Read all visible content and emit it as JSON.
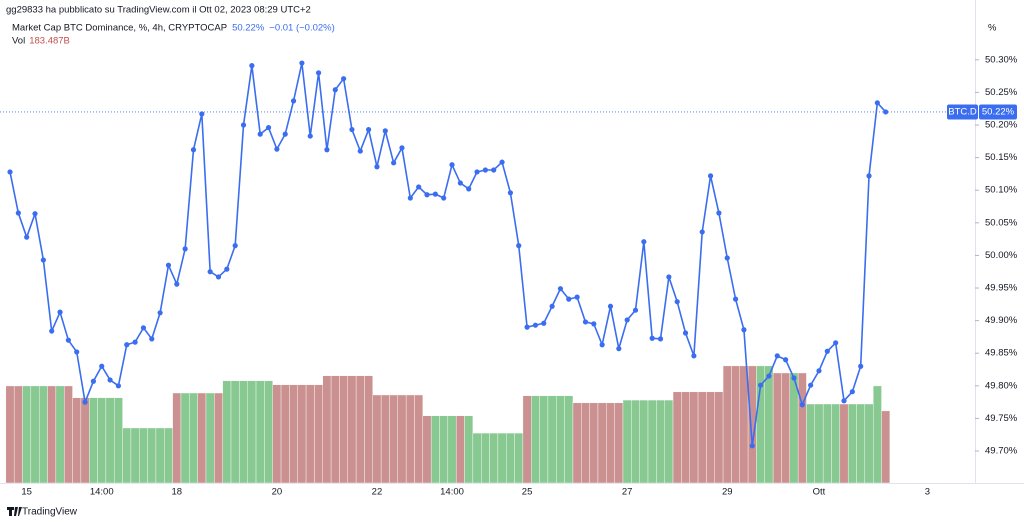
{
  "header": {
    "published": "gg29833 ha pubblicato su TradingView.com il Ott 02, 2023 08:29 UTC+2",
    "footer_brand": "TradingView"
  },
  "chart_data": {
    "type": "line",
    "title": "Market Cap BTC Dominance, %, 4h, CRYPTOCAP",
    "price_label": "50.22%",
    "change_label": "−0.01 (−0.02%)",
    "price_tag": "BTC.D",
    "axis_unit": "%",
    "categories": [
      null,
      null,
      "15",
      null,
      null,
      null,
      null,
      null,
      null,
      null,
      null,
      "14:00",
      null,
      null,
      null,
      null,
      null,
      null,
      null,
      null,
      "18",
      null,
      null,
      null,
      null,
      null,
      null,
      null,
      null,
      null,
      null,
      null,
      "20",
      null,
      null,
      null,
      null,
      null,
      null,
      null,
      null,
      null,
      null,
      null,
      "22",
      null,
      null,
      null,
      null,
      null,
      null,
      null,
      null,
      "14:00",
      null,
      null,
      null,
      null,
      null,
      null,
      null,
      null,
      "25",
      null,
      null,
      null,
      null,
      null,
      null,
      null,
      null,
      null,
      null,
      null,
      "27",
      null,
      null,
      null,
      null,
      null,
      null,
      null,
      null,
      null,
      null,
      null,
      "29",
      null,
      null,
      null,
      null,
      null,
      null,
      null,
      null,
      null,
      null,
      "Ott",
      null,
      null,
      null,
      null,
      null,
      null,
      null,
      null,
      null,
      null,
      null,
      null,
      "3"
    ],
    "series": [
      {
        "name": "BTC.D",
        "color": "#3a6df0",
        "values": [
          50.128,
          50.065,
          50.028,
          50.064,
          49.993,
          49.884,
          49.913,
          49.87,
          49.852,
          49.775,
          49.807,
          49.83,
          49.809,
          49.8,
          49.863,
          49.867,
          49.889,
          49.872,
          49.912,
          49.985,
          49.956,
          50.01,
          50.162,
          50.217,
          49.975,
          49.967,
          49.979,
          50.015,
          50.2,
          50.291,
          50.186,
          50.196,
          50.163,
          50.186,
          50.237,
          50.295,
          50.183,
          50.28,
          50.162,
          50.254,
          50.271,
          50.193,
          50.16,
          50.193,
          50.136,
          50.191,
          50.142,
          50.165,
          50.088,
          50.105,
          50.093,
          50.094,
          50.088,
          50.139,
          50.111,
          50.102,
          50.128,
          50.131,
          50.131,
          50.143,
          50.096,
          50.015,
          49.89,
          49.893,
          49.896,
          49.922,
          49.949,
          49.933,
          49.936,
          49.898,
          49.895,
          49.863,
          49.922,
          49.857,
          49.901,
          49.916,
          50.021,
          49.873,
          49.872,
          49.967,
          49.929,
          49.881,
          49.846,
          50.036,
          50.122,
          50.065,
          49.996,
          49.933,
          49.886,
          49.708,
          49.801,
          49.815,
          49.846,
          49.84,
          49.812,
          49.771,
          49.801,
          49.823,
          49.853,
          49.866,
          49.777,
          49.791,
          49.83,
          50.122,
          50.234,
          50.22,
          null,
          null,
          null,
          null,
          null
        ]
      }
    ],
    "volume": {
      "name": "Vol",
      "value_label": "183.487B",
      "values": [
        247,
        247,
        247,
        247,
        247,
        247,
        247,
        247,
        217,
        217,
        217,
        217,
        217,
        217,
        140,
        140,
        140,
        140,
        140,
        140,
        229,
        229,
        229,
        229,
        229,
        229,
        260,
        260,
        260,
        260,
        260,
        260,
        250,
        250,
        250,
        250,
        250,
        250,
        273,
        273,
        273,
        273,
        273,
        273,
        224,
        224,
        224,
        224,
        224,
        224,
        171,
        171,
        171,
        171,
        171,
        171,
        127,
        127,
        127,
        127,
        127,
        127,
        222,
        222,
        222,
        222,
        222,
        222,
        204,
        204,
        204,
        204,
        204,
        204,
        211,
        211,
        211,
        211,
        211,
        211,
        232,
        232,
        232,
        232,
        232,
        232,
        298,
        298,
        298,
        298,
        298,
        298,
        280,
        280,
        280,
        280,
        201,
        201,
        201,
        201,
        201,
        201,
        201,
        201,
        247,
        183.487,
        null,
        null,
        null,
        null,
        null
      ],
      "colors": [
        "#cb9191",
        "#cb9191",
        "#88c891",
        "#88c891",
        "#88c891",
        "#cb9191",
        "#88c891",
        "#cb9191",
        "#cb9191",
        "#cb9191",
        "#88c891",
        "#88c891",
        "#88c891",
        "#88c891",
        "#88c891",
        "#88c891",
        "#88c891",
        "#88c891",
        "#88c891",
        "#88c891",
        "#cb9191",
        "#88c891",
        "#88c891",
        "#cb9191",
        "#88c891",
        "#cb9191",
        "#88c891",
        "#88c891",
        "#88c891",
        "#88c891",
        "#88c891",
        "#88c891",
        "#cb9191",
        "#cb9191",
        "#cb9191",
        "#cb9191",
        "#cb9191",
        "#cb9191",
        "#cb9191",
        "#cb9191",
        "#cb9191",
        "#cb9191",
        "#cb9191",
        "#cb9191",
        "#cb9191",
        "#cb9191",
        "#cb9191",
        "#cb9191",
        "#cb9191",
        "#cb9191",
        "#cb9191",
        "#88c891",
        "#88c891",
        "#88c891",
        "#cb9191",
        "#88c891",
        "#88c891",
        "#88c891",
        "#88c891",
        "#88c891",
        "#88c891",
        "#88c891",
        "#cb9191",
        "#88c891",
        "#88c891",
        "#88c891",
        "#88c891",
        "#88c891",
        "#cb9191",
        "#cb9191",
        "#cb9191",
        "#cb9191",
        "#cb9191",
        "#cb9191",
        "#88c891",
        "#88c891",
        "#88c891",
        "#88c891",
        "#88c891",
        "#88c891",
        "#cb9191",
        "#cb9191",
        "#cb9191",
        "#cb9191",
        "#cb9191",
        "#cb9191",
        "#cb9191",
        "#cb9191",
        "#cb9191",
        "#cb9191",
        "#88c891",
        "#88c891",
        "#cb9191",
        "#cb9191",
        "#88c891",
        "#cb9191",
        "#88c891",
        "#88c891",
        "#88c891",
        "#88c891",
        "#cb9191",
        "#88c891",
        "#88c891",
        "#88c891",
        "#88c891",
        "#cb9191",
        null,
        null,
        null,
        null,
        null
      ]
    },
    "ylim": [
      49.651,
      50.361
    ],
    "yticks": [
      {
        "value": 49.7,
        "label": "49.70%"
      },
      {
        "value": 49.75,
        "label": "49.75%"
      },
      {
        "value": 49.8,
        "label": "49.80%"
      },
      {
        "value": 49.85,
        "label": "49.85%"
      },
      {
        "value": 49.9,
        "label": "49.90%"
      },
      {
        "value": 49.95,
        "label": "49.95%"
      },
      {
        "value": 50.0,
        "label": "50.00%"
      },
      {
        "value": 50.05,
        "label": "50.05%"
      },
      {
        "value": 50.1,
        "label": "50.10%"
      },
      {
        "value": 50.15,
        "label": "50.15%"
      },
      {
        "value": 50.2,
        "label": "50.20%"
      },
      {
        "value": 50.25,
        "label": "50.25%"
      },
      {
        "value": 50.3,
        "label": "50.30%"
      }
    ],
    "grid": false
  }
}
